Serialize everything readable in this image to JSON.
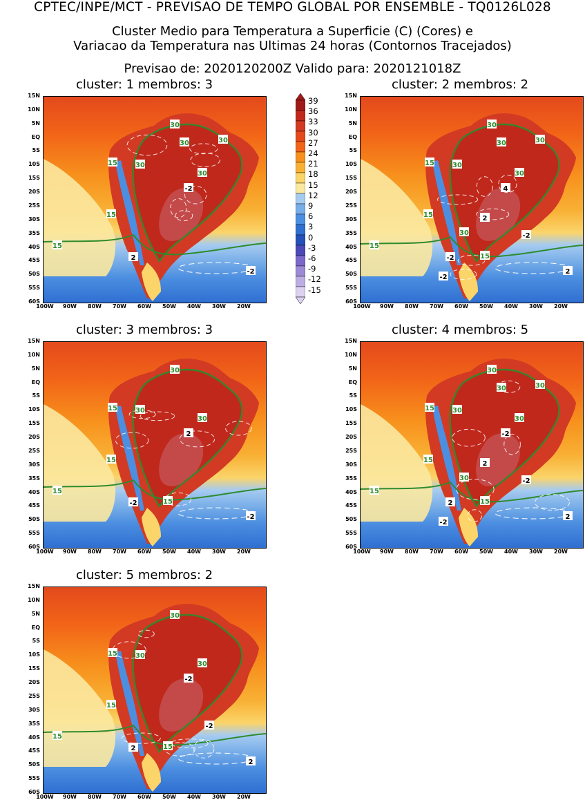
{
  "header": {
    "line1": "CPTEC/INPE/MCT - PREVISAO DE TEMPO GLOBAL POR ENSEMBLE - TQ0126L028",
    "line2": "Cluster Medio para Temperatura a Superficie (C) (Cores) e",
    "line3": "Variacao da Temperatura nas Ultimas 24 horas (Contornos Tracejados)",
    "line4": "Previsao de: 2020120200Z    Valido para: 2020121018Z"
  },
  "panels": [
    {
      "title": "cluster: 1   membros: 3",
      "labels15": 3,
      "labels30": 5
    },
    {
      "title": "cluster: 2   membros: 2",
      "labels15": 4,
      "labels30": 6
    },
    {
      "title": "cluster: 3   membros: 3",
      "labels15": 4,
      "labels30": 3
    },
    {
      "title": "cluster: 4   membros: 5",
      "labels15": 4,
      "labels30": 6
    },
    {
      "title": "cluster: 5   membros: 2",
      "labels15": 4,
      "labels30": 3
    }
  ],
  "lat_ticks": [
    "15N",
    "10N",
    "5N",
    "EQ",
    "5S",
    "10S",
    "15S",
    "20S",
    "25S",
    "30S",
    "35S",
    "40S",
    "45S",
    "50S",
    "55S",
    "60S"
  ],
  "lon_ticks": [
    "100W",
    "90W",
    "80W",
    "70W",
    "60W",
    "50W",
    "40W",
    "30W",
    "20W"
  ],
  "colorbar": {
    "labels": [
      "39",
      "36",
      "33",
      "30",
      "27",
      "24",
      "21",
      "18",
      "15",
      "12",
      "9",
      "6",
      "3",
      "0",
      "-3",
      "-6",
      "-9",
      "-12",
      "-15"
    ],
    "colors": [
      "#a01a1a",
      "#c0281c",
      "#d23a24",
      "#e44a1c",
      "#f26418",
      "#f7901c",
      "#f8b034",
      "#fbd46a",
      "#fbe8a0",
      "#a6cbf0",
      "#78aee8",
      "#4c8ee0",
      "#2f6fd2",
      "#2450b8",
      "#4b48b8",
      "#7c68c8",
      "#9c8ad6",
      "#bcaee2",
      "#dcd2f0"
    ]
  },
  "contour_labels": {
    "c15": "15",
    "c30": "30",
    "dneg": "-2",
    "dpos": "2",
    "d4": "4"
  },
  "panel_contour_labels": [
    {
      "c30": [
        "30",
        "30",
        "30",
        "30",
        "30"
      ],
      "c15": [
        "15",
        "15",
        "15"
      ],
      "d": [
        "2",
        "-2",
        "-2"
      ]
    },
    {
      "c30": [
        "30",
        "30",
        "30",
        "30",
        "30",
        "30"
      ],
      "c15": [
        "15",
        "15",
        "15",
        "15"
      ],
      "d": [
        "-2",
        "4",
        "2",
        "-2",
        "2",
        "-2"
      ]
    },
    {
      "c30": [
        "30",
        "30",
        "30"
      ],
      "c15": [
        "15",
        "15",
        "15",
        "15"
      ],
      "d": [
        "-2",
        "2",
        "-2"
      ]
    },
    {
      "c30": [
        "30",
        "30",
        "30",
        "30",
        "30",
        "30"
      ],
      "c15": [
        "15",
        "15",
        "15",
        "15"
      ],
      "d": [
        "2",
        "-2",
        "2",
        "-2",
        "2",
        "-2"
      ]
    },
    {
      "c30": [
        "30",
        "30",
        "30"
      ],
      "c15": [
        "15",
        "15",
        "15",
        "15"
      ],
      "d": [
        "2",
        "-2",
        "2",
        "-2"
      ]
    }
  ],
  "colors": {
    "contour15": "#2e8b2e",
    "contour30": "#2e8b2e",
    "dashed": "#ffffff"
  }
}
